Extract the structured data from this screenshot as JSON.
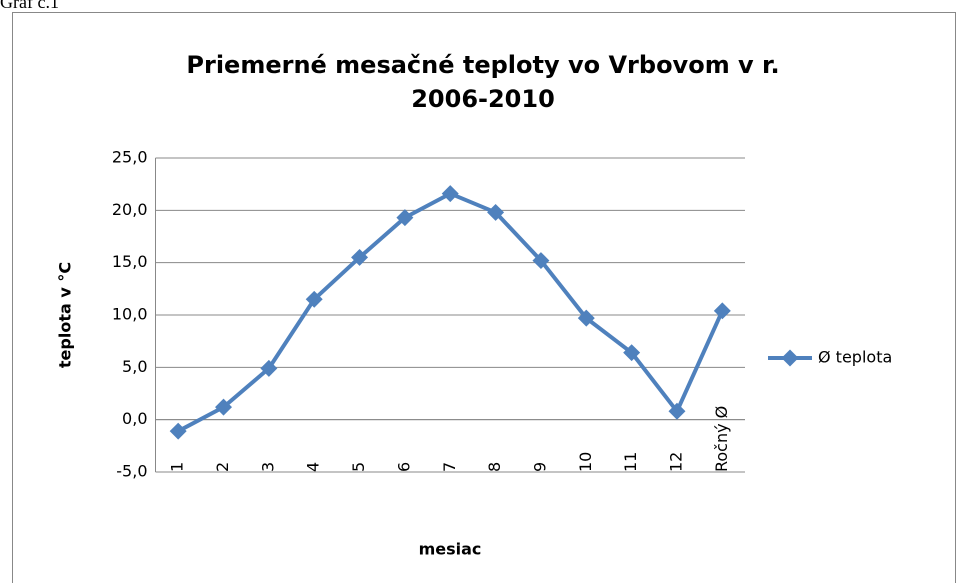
{
  "caption": "Graf č.1",
  "chart_data": {
    "type": "line",
    "title": "Priemerné mesačné teploty vo Vrbovom v r. 2006-2010",
    "x_label": "mesiac",
    "y_label": "teplota v °C",
    "categories": [
      "1",
      "2",
      "3",
      "4",
      "5",
      "6",
      "7",
      "8",
      "9",
      "10",
      "11",
      "12",
      "Ročný Ø"
    ],
    "series": [
      {
        "name": "Ø teplota",
        "color": "#4f81bd",
        "values": [
          -1.1,
          1.2,
          4.9,
          11.5,
          15.5,
          19.3,
          21.6,
          19.8,
          15.2,
          9.7,
          6.4,
          0.8,
          10.4
        ]
      }
    ],
    "ylim": [
      -5,
      25
    ],
    "yticks": [
      {
        "value": -5,
        "label": "-5,0"
      },
      {
        "value": 0,
        "label": "0,0"
      },
      {
        "value": 5,
        "label": "5,0"
      },
      {
        "value": 10,
        "label": "10,0"
      },
      {
        "value": 15,
        "label": "15,0"
      },
      {
        "value": 20,
        "label": "20,0"
      },
      {
        "value": 25,
        "label": "25,0"
      }
    ],
    "grid": true,
    "legend": "right"
  }
}
